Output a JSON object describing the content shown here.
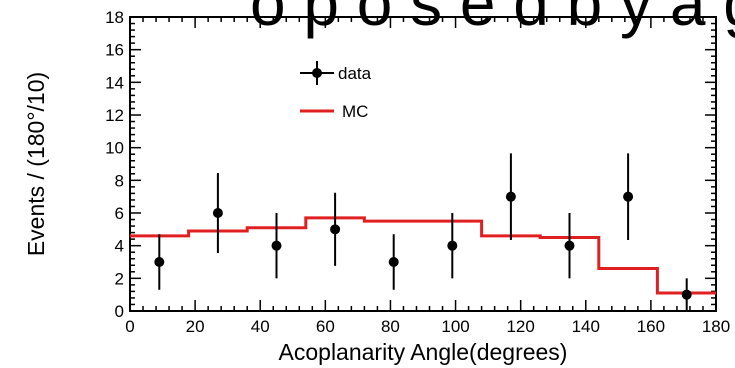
{
  "banner_text": "o p o s e d   b y   a   g",
  "chart_data": {
    "type": "scatter",
    "title": "",
    "xlabel": "Acoplanarity Angle(degrees)",
    "ylabel": "Events / (180°/10)",
    "xlim": [
      0,
      180
    ],
    "ylim": [
      0,
      18
    ],
    "x_ticks": [
      0,
      20,
      40,
      60,
      80,
      100,
      120,
      140,
      160,
      180
    ],
    "y_ticks": [
      0,
      2,
      4,
      6,
      8,
      10,
      12,
      14,
      16,
      18
    ],
    "grid": false,
    "legend_position": "top-left",
    "series": [
      {
        "name": "data",
        "kind": "points-with-errorbars",
        "color": "#000000",
        "x": [
          9,
          27,
          45,
          63,
          81,
          99,
          117,
          135,
          153,
          171
        ],
        "y": [
          3,
          6,
          4,
          5,
          3,
          4,
          7,
          4,
          7,
          1
        ],
        "yerr": [
          1.7,
          2.45,
          2.0,
          2.24,
          1.7,
          2.0,
          2.65,
          2.0,
          2.65,
          1.0
        ]
      },
      {
        "name": "MC",
        "kind": "step",
        "color": "#e02020",
        "bin_edges": [
          0,
          18,
          36,
          54,
          72,
          90,
          108,
          126,
          144,
          162,
          180
        ],
        "values": [
          4.6,
          4.9,
          5.1,
          5.7,
          5.5,
          5.5,
          4.6,
          4.5,
          2.6,
          1.1
        ]
      }
    ]
  }
}
